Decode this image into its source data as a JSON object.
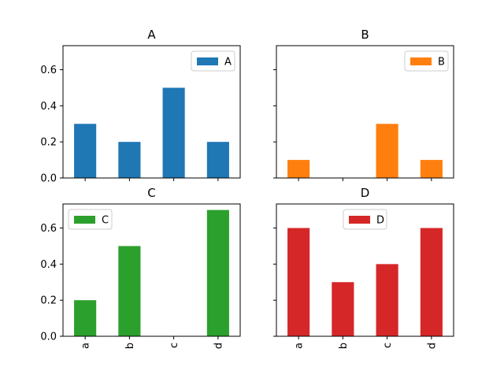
{
  "chart_data": {
    "type": "bar",
    "layout": "2x2 subplots, shared x and y axes",
    "categories": [
      "a",
      "b",
      "c",
      "d"
    ],
    "ylim": [
      0,
      0.7333
    ],
    "yticks": [
      0.0,
      0.2,
      0.4,
      0.6
    ],
    "ytick_labels": [
      "0.0",
      "0.2",
      "0.4",
      "0.6"
    ],
    "series": [
      {
        "name": "A",
        "title": "A",
        "color": "#1f77b4",
        "values": [
          0.3,
          0.2,
          0.5,
          0.2
        ],
        "legend_position": "top-right"
      },
      {
        "name": "B",
        "title": "B",
        "color": "#ff7f0e",
        "values": [
          0.1,
          0.0,
          0.3,
          0.1
        ],
        "legend_position": "top-right"
      },
      {
        "name": "C",
        "title": "C",
        "color": "#2ca02c",
        "values": [
          0.2,
          0.5,
          0.0,
          0.7
        ],
        "legend_position": "top-left"
      },
      {
        "name": "D",
        "title": "D",
        "color": "#d62728",
        "values": [
          0.6,
          0.3,
          0.4,
          0.6
        ],
        "legend_position": "top-center"
      }
    ]
  }
}
